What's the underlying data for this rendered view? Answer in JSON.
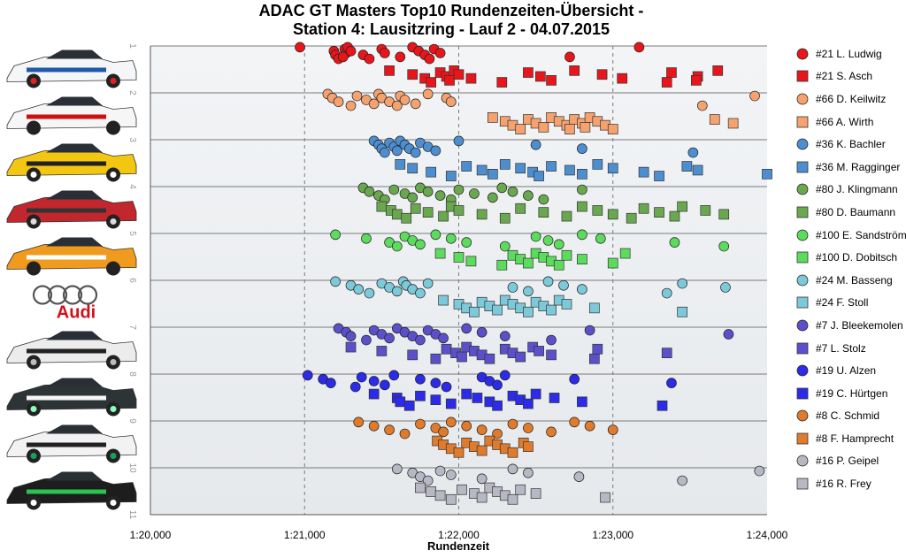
{
  "chart_data": {
    "type": "scatter",
    "title_line1": "ADAC GT Masters Top10 Rundenzeiten-Übersicht -",
    "title_line2": "Station 4: Lausitzring - Lauf 2 - 04.07.2015",
    "xlabel": "Rundenzeit",
    "x_ticks": [
      "1:20,000",
      "1:21,000",
      "1:22,000",
      "1:23,000",
      "1:24,000"
    ],
    "xlim": [
      80.0,
      84.0
    ],
    "y_ticks": [
      "1",
      "2",
      "3",
      "4",
      "5",
      "6",
      "7",
      "8",
      "9",
      "10",
      "11"
    ],
    "ylim": [
      1,
      11
    ],
    "grid": true,
    "legend_position": "right",
    "car_images": [
      "Mercedes SLS Mobil",
      "BMW Z4 Pilot",
      "BMW Z4 yellow",
      "Mercedes SLS red",
      "Audi R8 kfzteile24",
      "Audi logo",
      "Bentley Continental GT3",
      "BMW Z4 HAR",
      "Bentley Continental GT3 white",
      "Audi R8 Zoopla"
    ],
    "logo_text": "Audi",
    "series": [
      {
        "name": "#21 L. Ludwig",
        "color": "#e8161b",
        "marker": "circle",
        "row": 1,
        "offset": 0.15,
        "x": [
          80.97,
          81.19,
          81.2,
          81.22,
          81.26,
          81.27,
          81.25,
          81.28,
          81.3,
          81.38,
          81.42,
          81.5,
          81.52,
          81.62,
          81.7,
          81.74,
          81.78,
          81.81,
          81.84,
          81.88,
          82.72,
          83.17
        ]
      },
      {
        "name": "#21 S. Asch",
        "color": "#e8161b",
        "marker": "square",
        "row": 1,
        "offset": 0.65,
        "x": [
          81.55,
          81.7,
          81.78,
          81.82,
          81.88,
          81.92,
          81.94,
          81.97,
          82.0,
          82.08,
          82.28,
          82.45,
          82.53,
          82.6,
          82.75,
          82.93,
          83.06,
          83.35,
          83.38,
          83.55,
          83.54,
          83.68
        ]
      },
      {
        "name": "#66 D. Keilwitz",
        "color": "#f5a26f",
        "marker": "circle",
        "row": 2,
        "offset": 0.15,
        "x": [
          81.15,
          81.18,
          81.22,
          81.3,
          81.34,
          81.4,
          81.45,
          81.48,
          81.5,
          81.55,
          81.6,
          81.62,
          81.65,
          81.72,
          81.8,
          81.92,
          81.95,
          83.58,
          83.92
        ]
      },
      {
        "name": "#66 A. Wirth",
        "color": "#f5a26f",
        "marker": "square",
        "row": 2,
        "offset": 0.65,
        "x": [
          82.22,
          82.3,
          82.35,
          82.4,
          82.45,
          82.5,
          82.55,
          82.6,
          82.65,
          82.7,
          82.72,
          82.75,
          82.8,
          82.82,
          82.85,
          82.9,
          82.95,
          83.0,
          83.66,
          83.78
        ]
      },
      {
        "name": "#36 K. Bachler",
        "color": "#4d8ed1",
        "marker": "circle",
        "row": 3,
        "offset": 0.15,
        "x": [
          81.45,
          81.48,
          81.5,
          81.52,
          81.55,
          81.58,
          81.6,
          81.62,
          81.65,
          81.68,
          81.72,
          81.75,
          81.8,
          81.85,
          82.0,
          82.5,
          82.8,
          83.52
        ]
      },
      {
        "name": "#36 M. Ragginger",
        "color": "#4d8ed1",
        "marker": "square",
        "row": 3,
        "offset": 0.65,
        "x": [
          81.62,
          81.7,
          81.82,
          81.95,
          82.05,
          82.15,
          82.22,
          82.3,
          82.4,
          82.48,
          82.52,
          82.6,
          82.72,
          82.8,
          82.9,
          83.0,
          83.2,
          83.3,
          83.48,
          83.55,
          84.0
        ]
      },
      {
        "name": "#80 J. Klingmann",
        "color": "#6aa84f",
        "marker": "circle",
        "row": 4,
        "offset": 0.15,
        "x": [
          81.38,
          81.42,
          81.48,
          81.52,
          81.58,
          81.65,
          81.7,
          81.75,
          81.8,
          81.88,
          81.95,
          82.0,
          82.1,
          82.22,
          82.28,
          82.35,
          82.45,
          82.55,
          82.8
        ]
      },
      {
        "name": "#80 D. Baumann",
        "color": "#6aa84f",
        "marker": "square",
        "row": 4,
        "offset": 0.55,
        "x": [
          81.5,
          81.56,
          81.6,
          81.66,
          81.72,
          81.8,
          81.9,
          81.95,
          82.0,
          82.15,
          82.3,
          82.4,
          82.55,
          82.7,
          82.8,
          82.9,
          83.0,
          83.12,
          83.2,
          83.3,
          83.4,
          83.45,
          83.6,
          83.72
        ]
      },
      {
        "name": "#100 E. Sandström",
        "color": "#5cdc5c",
        "marker": "circle",
        "row": 5,
        "offset": 0.15,
        "x": [
          81.2,
          81.4,
          81.55,
          81.6,
          81.65,
          81.7,
          81.75,
          81.85,
          81.95,
          82.05,
          82.3,
          82.5,
          82.58,
          82.65,
          82.8,
          82.92,
          83.4,
          83.72
        ]
      },
      {
        "name": "#100 D. Dobitsch",
        "color": "#5cdc5c",
        "marker": "square",
        "row": 5,
        "offset": 0.55,
        "x": [
          81.88,
          82.0,
          82.08,
          82.28,
          82.35,
          82.4,
          82.45,
          82.5,
          82.55,
          82.6,
          82.65,
          82.7,
          82.8,
          83.0,
          83.08
        ]
      },
      {
        "name": "#24 M. Basseng",
        "color": "#7cc9d9",
        "marker": "circle",
        "row": 6,
        "offset": 0.15,
        "x": [
          81.2,
          81.3,
          81.35,
          81.42,
          81.5,
          81.55,
          81.6,
          81.64,
          81.66,
          81.7,
          81.75,
          81.8,
          82.35,
          82.45,
          82.58,
          82.68,
          82.8,
          83.35,
          83.45,
          83.73
        ]
      },
      {
        "name": "#24 F. Stoll",
        "color": "#7cc9d9",
        "marker": "square",
        "row": 6,
        "offset": 0.55,
        "x": [
          81.9,
          82.0,
          82.05,
          82.1,
          82.15,
          82.2,
          82.25,
          82.3,
          82.35,
          82.4,
          82.45,
          82.5,
          82.55,
          82.6,
          82.65,
          82.7,
          82.88,
          83.45
        ]
      },
      {
        "name": "#7 J. Bleekemolen",
        "color": "#5b50c9",
        "marker": "circle",
        "row": 7,
        "offset": 0.15,
        "x": [
          81.22,
          81.27,
          81.3,
          81.4,
          81.45,
          81.5,
          81.55,
          81.6,
          81.65,
          81.7,
          81.75,
          81.8,
          81.85,
          81.9,
          82.05,
          82.15,
          82.3,
          82.6,
          82.85,
          83.75
        ]
      },
      {
        "name": "#7 L. Stolz",
        "color": "#5b50c9",
        "marker": "square",
        "row": 7,
        "offset": 0.55,
        "x": [
          81.3,
          81.5,
          81.7,
          81.85,
          81.92,
          81.98,
          82.02,
          82.05,
          82.1,
          82.15,
          82.2,
          82.3,
          82.35,
          82.4,
          82.48,
          82.52,
          82.6,
          82.88,
          82.9,
          83.35
        ]
      },
      {
        "name": "#19 U. Alzen",
        "color": "#2b2be8",
        "marker": "circle",
        "row": 8,
        "offset": 0.15,
        "x": [
          81.02,
          81.12,
          81.17,
          81.33,
          81.37,
          81.45,
          81.52,
          81.58,
          81.75,
          81.85,
          81.92,
          82.15,
          82.2,
          82.25,
          82.3,
          82.75,
          83.38
        ]
      },
      {
        "name": "#19 C. Hürtgen",
        "color": "#2b2be8",
        "marker": "square",
        "row": 8,
        "offset": 0.55,
        "x": [
          81.45,
          81.6,
          81.62,
          81.68,
          81.75,
          81.85,
          81.95,
          82.05,
          82.12,
          82.2,
          82.25,
          82.35,
          82.4,
          82.45,
          82.5,
          82.62,
          82.8,
          83.32
        ]
      },
      {
        "name": "#8 C. Schmid",
        "color": "#e07b2b",
        "marker": "circle",
        "row": 9,
        "offset": 0.15,
        "x": [
          81.35,
          81.45,
          81.55,
          81.65,
          81.75,
          81.85,
          81.9,
          81.95,
          82.05,
          82.15,
          82.25,
          82.35,
          82.45,
          82.6,
          82.75,
          82.85,
          83.0
        ]
      },
      {
        "name": "#8 F. Hamprecht",
        "color": "#e07b2b",
        "marker": "square",
        "row": 9,
        "offset": 0.55,
        "x": [
          81.86,
          81.9,
          81.95,
          82.0,
          82.05,
          82.1,
          82.15,
          82.2,
          82.25,
          82.3,
          82.35,
          82.42,
          82.45
        ]
      },
      {
        "name": "#16 P. Geipel",
        "color": "#b8b8c4",
        "marker": "circle",
        "row": 10,
        "offset": 0.15,
        "x": [
          81.6,
          81.7,
          81.75,
          81.8,
          81.88,
          81.95,
          82.15,
          82.35,
          82.45,
          82.78,
          83.45,
          83.95
        ]
      },
      {
        "name": "#16 R. Frey",
        "color": "#b8b8c4",
        "marker": "square",
        "row": 10,
        "offset": 0.55,
        "x": [
          81.75,
          81.82,
          81.88,
          81.95,
          82.02,
          82.1,
          82.15,
          82.2,
          82.25,
          82.3,
          82.35,
          82.4,
          82.5,
          82.95
        ]
      }
    ]
  }
}
